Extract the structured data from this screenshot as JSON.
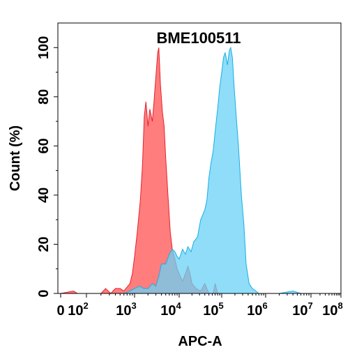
{
  "chart_data": {
    "type": "area",
    "title": "BME100511",
    "xlabel": "APC-A",
    "ylabel": "Count  (%)",
    "x_scale": "biexponential-log",
    "xlim": [
      0,
      100000000
    ],
    "ylim": [
      0,
      110
    ],
    "x_ticks": [
      {
        "value": 0,
        "label": "0"
      },
      {
        "value": 100,
        "base": "10",
        "exp": "2"
      },
      {
        "value": 1000,
        "base": "10",
        "exp": "3"
      },
      {
        "value": 10000,
        "base": "10",
        "exp": "4"
      },
      {
        "value": 100000,
        "base": "10",
        "exp": "5"
      },
      {
        "value": 1000000,
        "base": "10",
        "exp": "6"
      },
      {
        "value": 10000000,
        "base": "10",
        "exp": "7"
      },
      {
        "value": 100000000,
        "base": "10",
        "exp": "8"
      }
    ],
    "y_ticks": [
      0,
      20,
      40,
      60,
      80,
      100
    ],
    "grid": false,
    "legend": "none",
    "series": [
      {
        "color": "#ff6666",
        "stroke": "#e8202a",
        "points": [
          [
            0,
            0
          ],
          [
            10,
            1
          ],
          [
            20,
            0
          ],
          [
            100,
            0
          ],
          [
            200,
            0
          ],
          [
            250,
            2
          ],
          [
            320,
            0
          ],
          [
            400,
            2
          ],
          [
            500,
            2
          ],
          [
            600,
            1
          ],
          [
            800,
            4
          ],
          [
            900,
            8
          ],
          [
            1000,
            15
          ],
          [
            1150,
            25
          ],
          [
            1350,
            38
          ],
          [
            1500,
            52
          ],
          [
            1650,
            72
          ],
          [
            1800,
            78
          ],
          [
            2000,
            68
          ],
          [
            2200,
            75
          ],
          [
            2500,
            70
          ],
          [
            2700,
            77
          ],
          [
            3000,
            88
          ],
          [
            3300,
            98
          ],
          [
            3500,
            100
          ],
          [
            3800,
            85
          ],
          [
            4200,
            74
          ],
          [
            4600,
            68
          ],
          [
            5000,
            55
          ],
          [
            5600,
            40
          ],
          [
            6300,
            25
          ],
          [
            7000,
            18
          ],
          [
            8000,
            14
          ],
          [
            9000,
            10
          ],
          [
            10000,
            8
          ],
          [
            12000,
            5
          ],
          [
            14000,
            8
          ],
          [
            16000,
            11
          ],
          [
            18000,
            8
          ],
          [
            20000,
            4
          ],
          [
            25000,
            2
          ],
          [
            32000,
            1
          ],
          [
            40000,
            4
          ],
          [
            45000,
            2
          ],
          [
            50000,
            0
          ],
          [
            63000,
            0
          ],
          [
            70000,
            4
          ],
          [
            80000,
            0
          ],
          [
            90000,
            0
          ],
          [
            100000,
            0
          ]
        ]
      },
      {
        "color": "#69d2f6",
        "stroke": "#16aee6",
        "points": [
          [
            400,
            0
          ],
          [
            600,
            0
          ],
          [
            800,
            1
          ],
          [
            1000,
            2
          ],
          [
            1300,
            3
          ],
          [
            1600,
            2
          ],
          [
            2000,
            2
          ],
          [
            2500,
            4
          ],
          [
            3000,
            3
          ],
          [
            3500,
            7
          ],
          [
            4000,
            12
          ],
          [
            5000,
            12
          ],
          [
            6000,
            16
          ],
          [
            7000,
            18
          ],
          [
            8000,
            17
          ],
          [
            9000,
            15
          ],
          [
            10000,
            14
          ],
          [
            12000,
            18
          ],
          [
            14000,
            16
          ],
          [
            16000,
            19
          ],
          [
            19000,
            17
          ],
          [
            22000,
            21
          ],
          [
            27000,
            23
          ],
          [
            32000,
            30
          ],
          [
            36000,
            32
          ],
          [
            40000,
            34
          ],
          [
            45000,
            38
          ],
          [
            50000,
            47
          ],
          [
            56000,
            53
          ],
          [
            63000,
            58
          ],
          [
            70000,
            66
          ],
          [
            80000,
            75
          ],
          [
            90000,
            84
          ],
          [
            100000,
            90
          ],
          [
            110000,
            96
          ],
          [
            120000,
            98
          ],
          [
            135000,
            93
          ],
          [
            150000,
            99
          ],
          [
            160000,
            100
          ],
          [
            175000,
            96
          ],
          [
            190000,
            85
          ],
          [
            210000,
            74
          ],
          [
            240000,
            60
          ],
          [
            280000,
            40
          ],
          [
            320000,
            28
          ],
          [
            360000,
            12
          ],
          [
            420000,
            4
          ],
          [
            500000,
            2
          ],
          [
            600000,
            1
          ],
          [
            700000,
            0
          ],
          [
            2000000,
            0
          ],
          [
            4000000,
            1
          ],
          [
            6000000,
            0
          ]
        ]
      }
    ]
  }
}
